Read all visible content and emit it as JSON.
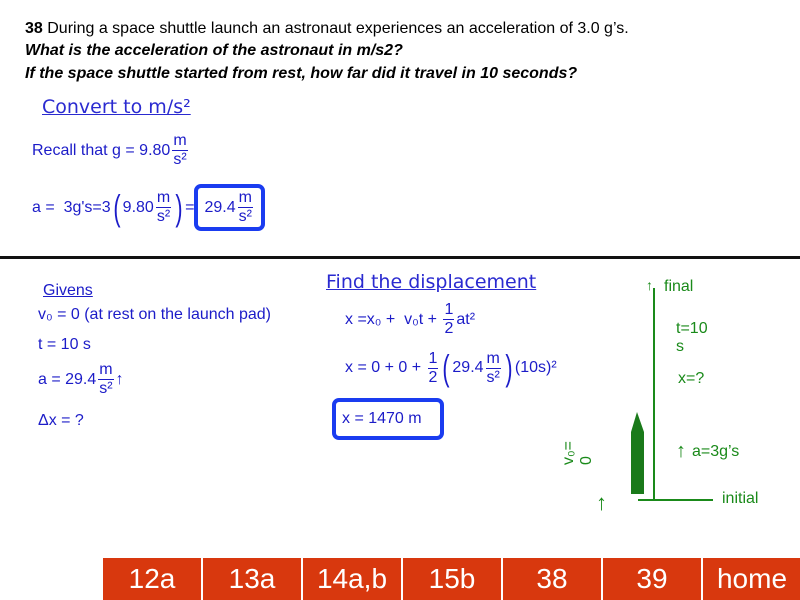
{
  "question": {
    "number": "38",
    "text": "During a space shuttle launch an astronaut experiences an acceleration of 3.0 g’s.",
    "q1": "What is the acceleration of the astronaut in m/s2?",
    "q2": "If the space shuttle started from rest, how far did it travel in 10 seconds?"
  },
  "convert": {
    "heading": "Convert to m/s²",
    "recall": "Recall that g = 9.80",
    "unit_num": "m",
    "unit_den": "s²",
    "line2_a": "a =  3g's=3",
    "val": "9.80",
    "eq": "=",
    "result": "29.4"
  },
  "givens": {
    "heading": "Givens",
    "v0": "v₀ = 0 (at rest on the launch pad)",
    "t": "t = 10 s",
    "a": "a = 29.4",
    "a_arrow": "↑",
    "dx": "Δx = ?"
  },
  "displacement": {
    "heading": "Find the displacement",
    "eq1_a": "x =x₀ +  v₀t + ",
    "half_n": "1",
    "half_d": "2",
    "eq1_b": "at²",
    "eq2_a": "x = 0 + 0 + ",
    "eq2_val": "29.4",
    "eq2_b": "(10s)²",
    "answer": "x = 1470 m"
  },
  "diagram": {
    "final": "final",
    "t": "t=10 s",
    "x": "x=?",
    "a": "a=3g’s",
    "initial": "initial",
    "v0": "v₀= 0",
    "color": "#1a8a1a"
  },
  "nav": [
    "12a",
    "13a",
    "14a,b",
    "15b",
    "38",
    "39",
    "home"
  ],
  "colors": {
    "nav": "#d8380e",
    "blue": "#1c1cc8",
    "box": "#1a3cf0"
  }
}
